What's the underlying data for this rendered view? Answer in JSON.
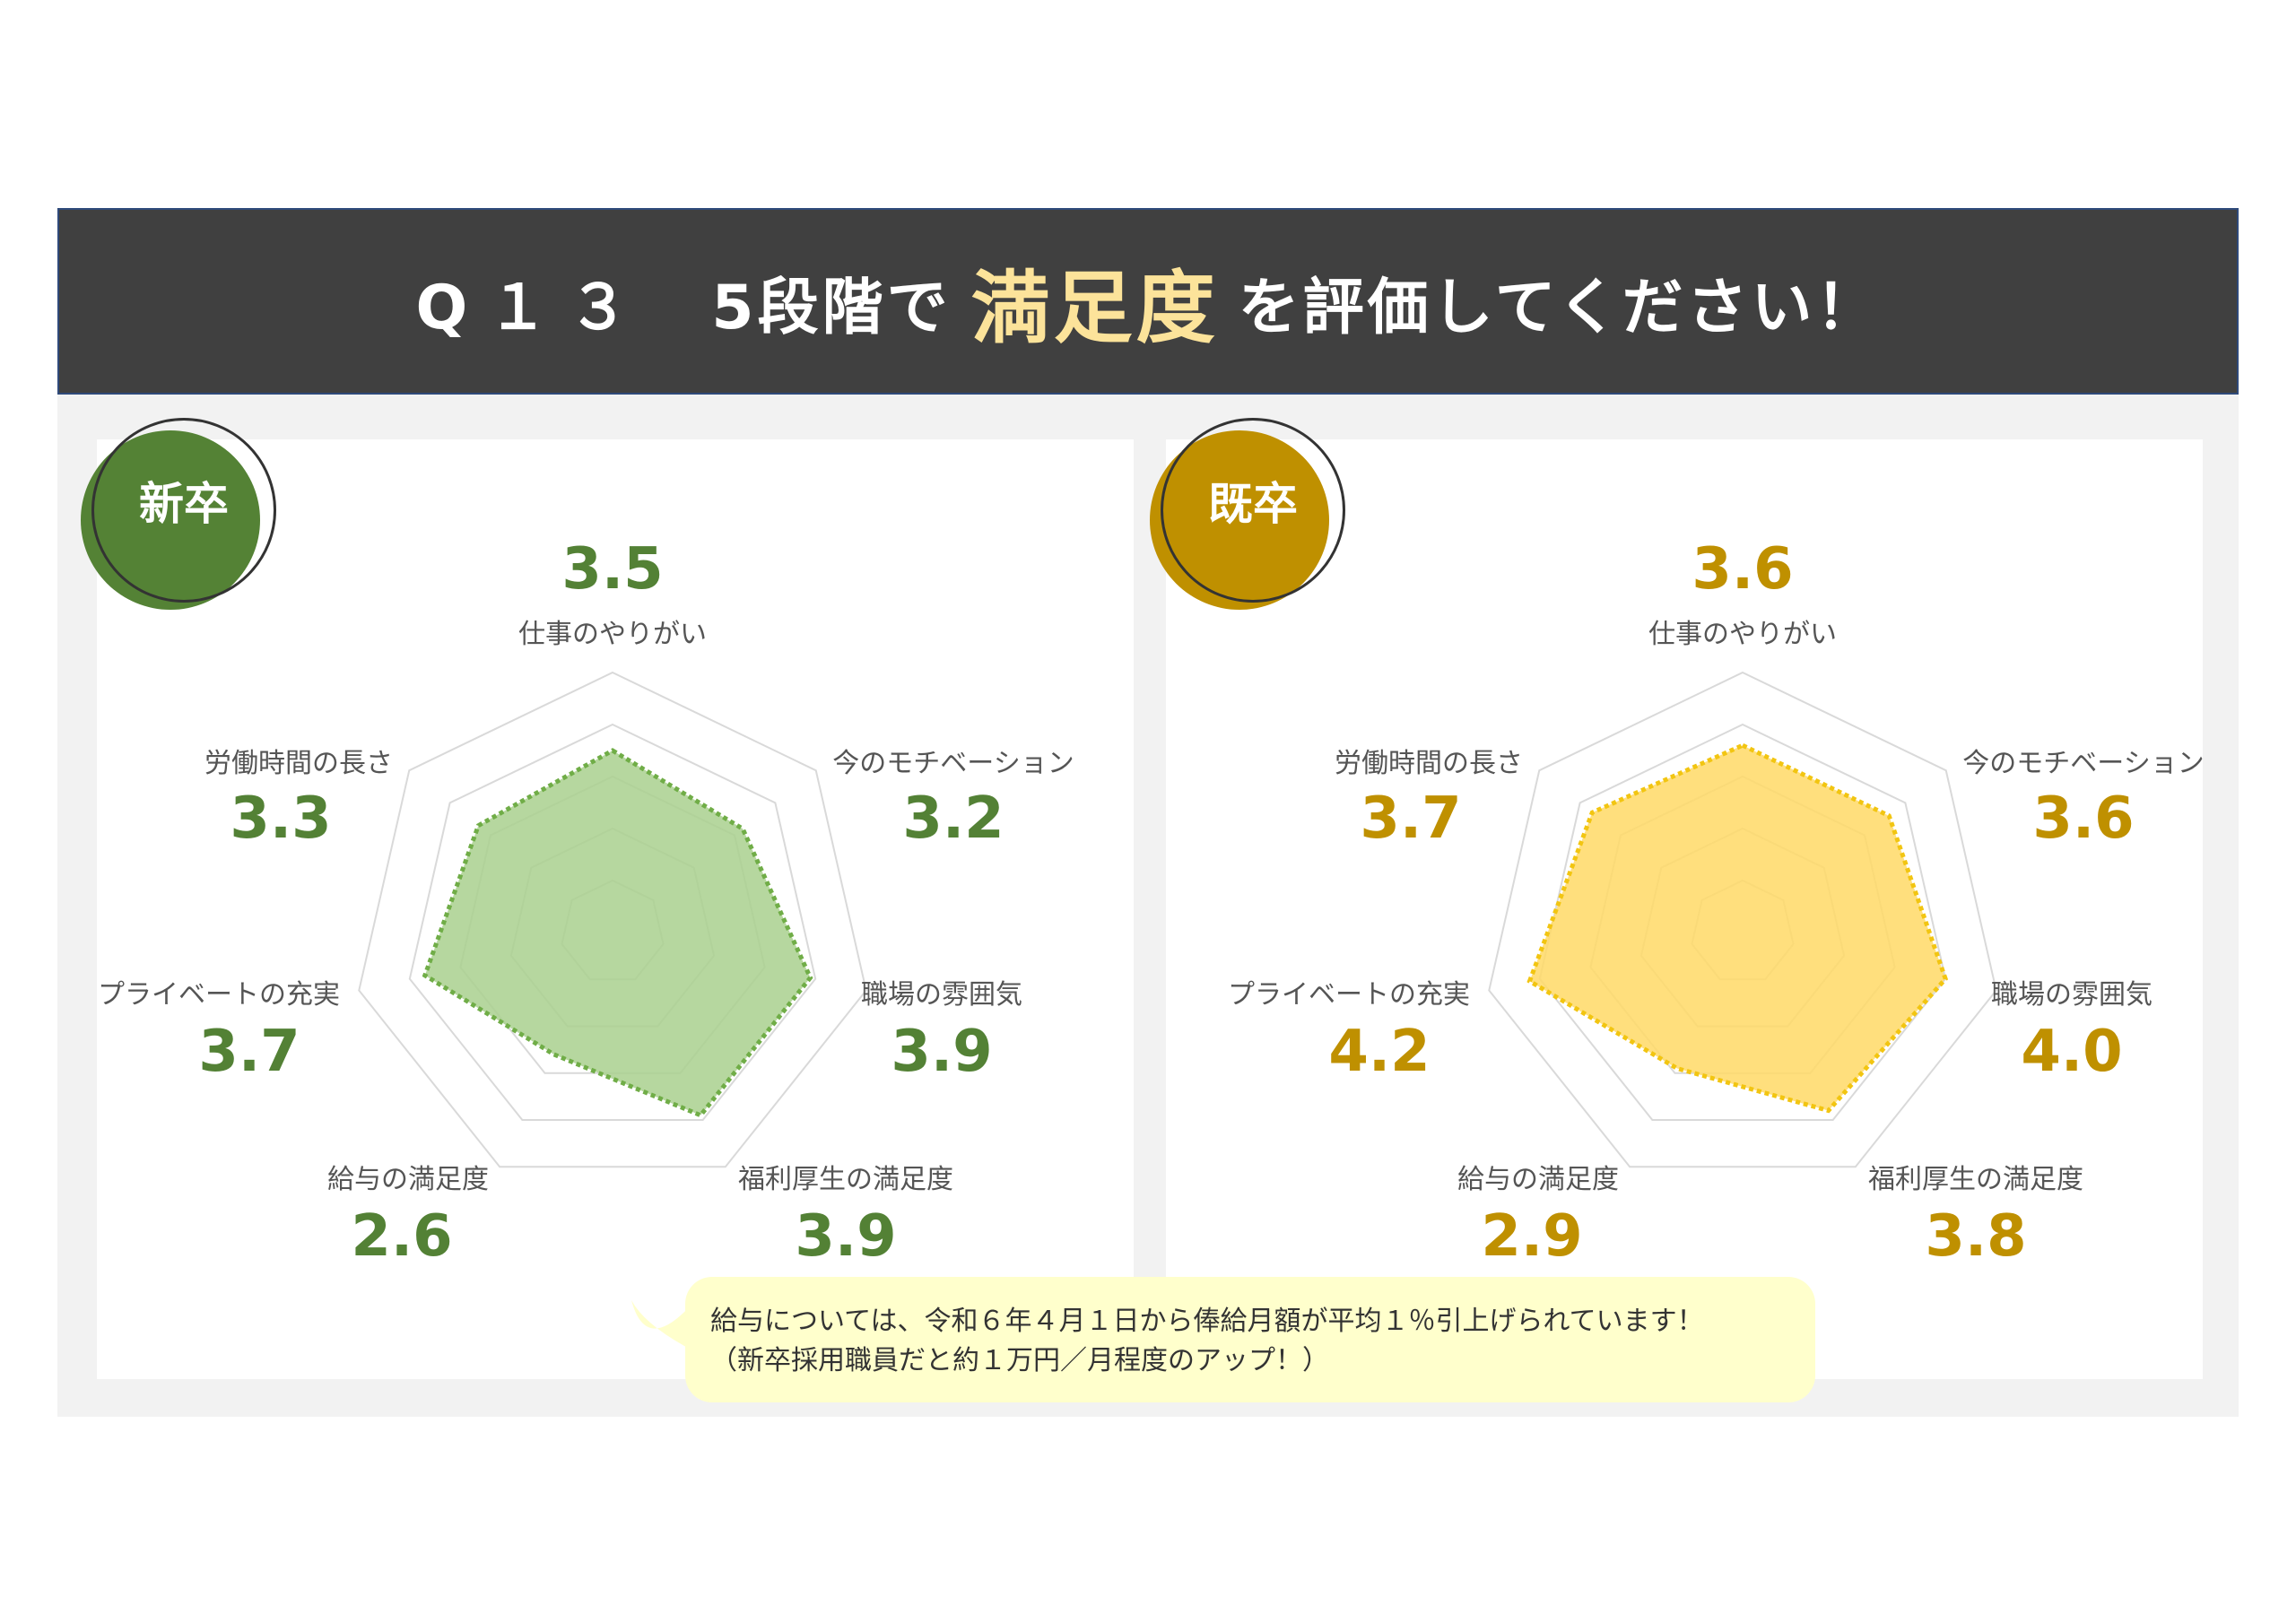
{
  "header": {
    "q": "Q１３",
    "pre": "5段階で",
    "highlight": "満足度",
    "post": "を評価してください！"
  },
  "colors": {
    "green": "#538135",
    "green_fill": "#a9d08e",
    "green_line": "#70ad47",
    "gold": "#bf9000",
    "gold_fill": "#ffd966",
    "gold_line": "#f2c511"
  },
  "chart_data": [
    {
      "type": "radar",
      "group": "新卒",
      "axes": [
        "仕事のやりがい",
        "今のモチベーション",
        "職場の雰囲気",
        "福利厚生の満足度",
        "給与の満足度",
        "プライベートの充実",
        "労働時間の長さ"
      ],
      "values": [
        "3.5",
        "3.2",
        "3.9",
        "3.9",
        "2.6",
        "3.7",
        "3.3"
      ],
      "range": [
        0,
        5
      ]
    },
    {
      "type": "radar",
      "group": "既卒",
      "axes": [
        "仕事のやりがい",
        "今のモチベーション",
        "職場の雰囲気",
        "福利厚生の満足度",
        "給与の満足度",
        "プライベートの充実",
        "労働時間の長さ"
      ],
      "values": [
        "3.6",
        "3.6",
        "4.0",
        "3.8",
        "2.9",
        "4.2",
        "3.7"
      ],
      "range": [
        0,
        5
      ]
    }
  ],
  "note": {
    "line1": "給与については、令和６年４月１日から俸給月額が平均１％引上げられています！",
    "line2": "（新卒採用職員だと約１万円／月程度のアップ！）"
  }
}
